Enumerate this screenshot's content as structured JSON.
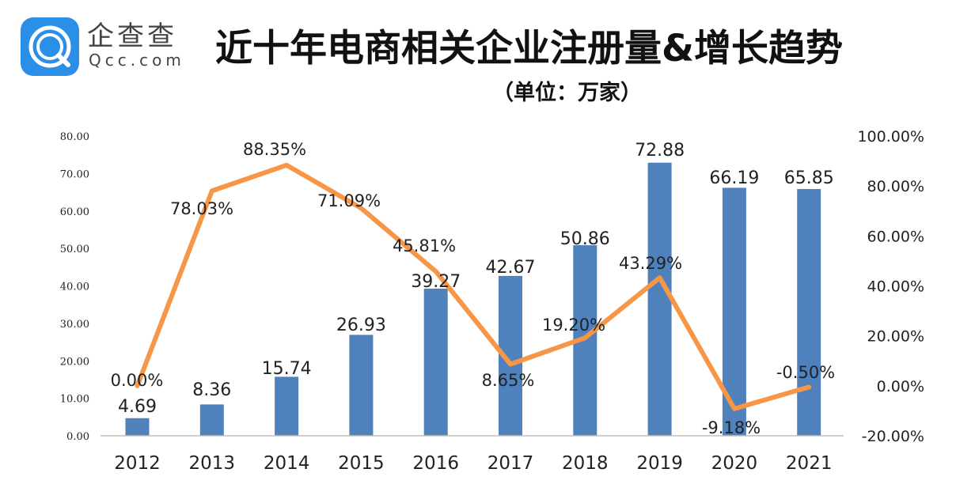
{
  "header": {
    "logo_name": "企查查",
    "logo_domain": "Qcc.com",
    "title": "近十年电商相关企业注册量&增长趋势",
    "subtitle": "（单位：万家）"
  },
  "colors": {
    "bar": "#4f81bd",
    "line": "#f79646",
    "logo": "#2b8fe8"
  },
  "chart_data": {
    "type": "bar",
    "categories": [
      "2012",
      "2013",
      "2014",
      "2015",
      "2016",
      "2017",
      "2018",
      "2019",
      "2020",
      "2021"
    ],
    "series": [
      {
        "type": "bar",
        "axis": "left",
        "values": [
          4.69,
          8.36,
          15.74,
          26.93,
          39.27,
          42.67,
          50.86,
          72.88,
          66.19,
          65.85
        ],
        "labels": [
          "4.69",
          "8.36",
          "15.74",
          "26.93",
          "39.27",
          "42.67",
          "50.86",
          "72.88",
          "66.19",
          "65.85"
        ]
      },
      {
        "type": "line",
        "axis": "right",
        "values": [
          0.0,
          78.03,
          88.35,
          71.09,
          45.81,
          8.65,
          19.2,
          43.29,
          -9.18,
          -0.5
        ],
        "labels": [
          "0.00%",
          "78.03%",
          "88.35%",
          "71.09%",
          "45.81%",
          "8.65%",
          "19.20%",
          "43.29%",
          "-9.18%",
          "-0.50%"
        ]
      }
    ],
    "left_axis": {
      "min": 0,
      "max": 80,
      "step": 10,
      "ticks": [
        "0.00",
        "10.00",
        "20.00",
        "30.00",
        "40.00",
        "50.00",
        "60.00",
        "70.00",
        "80.00"
      ]
    },
    "right_axis": {
      "min": -20,
      "max": 100,
      "step": 20,
      "ticks": [
        "-20.00%",
        "0.00%",
        "20.00%",
        "40.00%",
        "60.00%",
        "80.00%",
        "100.00%"
      ]
    },
    "grid": false,
    "legend": "none"
  }
}
